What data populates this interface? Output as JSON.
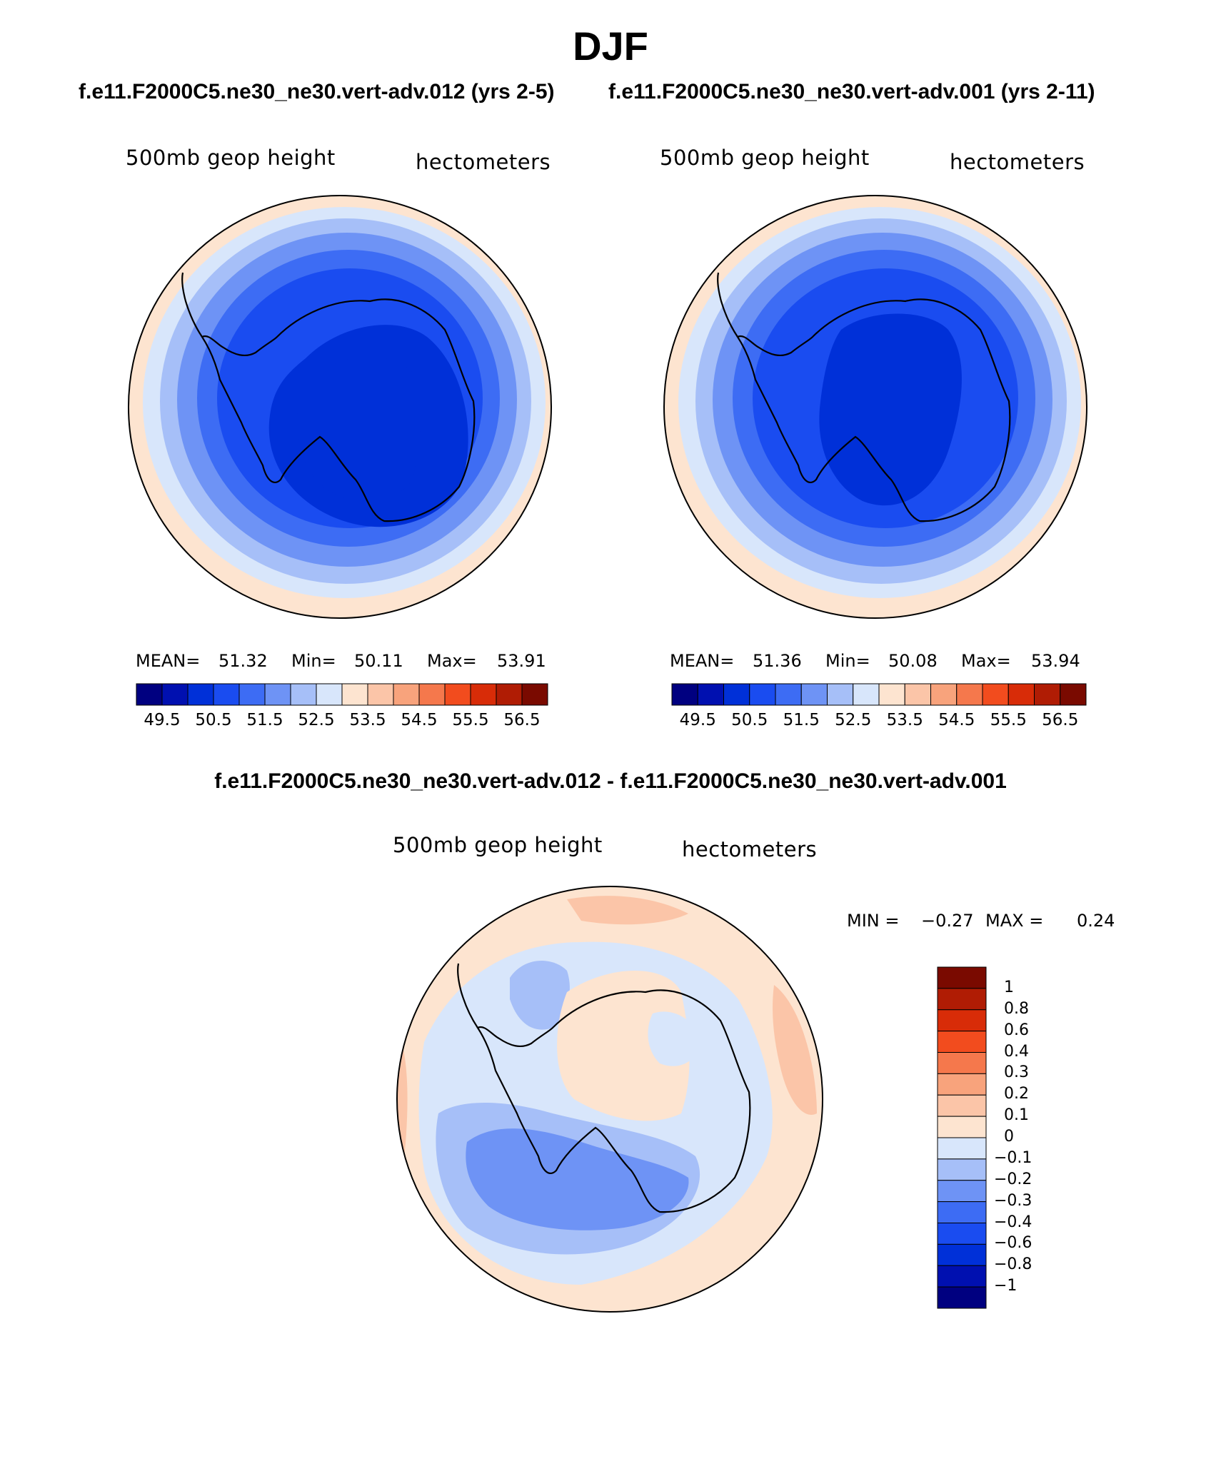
{
  "header": {
    "season": "DJF",
    "case_left": "f.e11.F2000C5.ne30_ne30.vert-adv.012 (yrs 2-5)",
    "case_right": "f.e11.F2000C5.ne30_ne30.vert-adv.001 (yrs 2-11)",
    "diff_title": "f.e11.F2000C5.ne30_ne30.vert-adv.012 - f.e11.F2000C5.ne30_ne30.vert-adv.001"
  },
  "panels": [
    {
      "variable": "500mb geop height",
      "units": "hectometers",
      "mean_label": "MEAN=",
      "mean": "51.32",
      "min_label": "Min=",
      "min": "50.11",
      "max_label": "Max=",
      "max": "53.91"
    },
    {
      "variable": "500mb geop height",
      "units": "hectometers",
      "mean_label": "MEAN=",
      "mean": "51.36",
      "min_label": "Min=",
      "min": "50.08",
      "max_label": "Max=",
      "max": "53.94"
    }
  ],
  "diff_panel": {
    "variable": "500mb geop height",
    "units": "hectometers",
    "min_label": "MIN =",
    "min": "−0.27",
    "max_label": "MAX =",
    "max": "0.24"
  },
  "colorbar_abs": {
    "ticks": [
      "49.5",
      "50.5",
      "51.5",
      "52.5",
      "53.5",
      "54.5",
      "55.5",
      "56.5"
    ],
    "colors": [
      "#000080",
      "#0010b0",
      "#0030d8",
      "#1a4cf0",
      "#3d6cf4",
      "#6e93f5",
      "#a6bff8",
      "#d8e6fb",
      "#fde4d0",
      "#fbc5a8",
      "#f8a37c",
      "#f5784c",
      "#f24c1e",
      "#d82c08",
      "#b01c04",
      "#7a0a00"
    ]
  },
  "colorbar_diff": {
    "ticks": [
      "1",
      "0.8",
      "0.6",
      "0.4",
      "0.3",
      "0.2",
      "0.1",
      "0",
      "−0.1",
      "−0.2",
      "−0.3",
      "−0.4",
      "−0.6",
      "−0.8",
      "−1"
    ],
    "colors": [
      "#7a0a00",
      "#b01c04",
      "#d82c08",
      "#f24c1e",
      "#f5784c",
      "#f8a37c",
      "#fbc5a8",
      "#fde4d0",
      "#d8e6fb",
      "#a6bff8",
      "#6e93f5",
      "#3d6cf4",
      "#1a4cf0",
      "#0030d8",
      "#0010b0",
      "#000080"
    ]
  },
  "chart_data": [
    {
      "type": "heatmap",
      "title": "500mb geop height",
      "units": "hectometers",
      "case": "f.e11.F2000C5.ne30_ne30.vert-adv.012 (yrs 2-5)",
      "projection": "south polar stereographic",
      "mean": 51.32,
      "min": 50.11,
      "max": 53.91,
      "contour_levels": [
        49.5,
        50.0,
        50.5,
        51.0,
        51.5,
        52.0,
        52.5,
        53.0,
        53.5,
        54.0,
        54.5,
        55.0,
        55.5,
        56.0,
        56.5
      ]
    },
    {
      "type": "heatmap",
      "title": "500mb geop height",
      "units": "hectometers",
      "case": "f.e11.F2000C5.ne30_ne30.vert-adv.001 (yrs 2-11)",
      "projection": "south polar stereographic",
      "mean": 51.36,
      "min": 50.08,
      "max": 53.94,
      "contour_levels": [
        49.5,
        50.0,
        50.5,
        51.0,
        51.5,
        52.0,
        52.5,
        53.0,
        53.5,
        54.0,
        54.5,
        55.0,
        55.5,
        56.0,
        56.5
      ]
    },
    {
      "type": "heatmap",
      "title": "500mb geop height (difference)",
      "units": "hectometers",
      "case": "f.e11.F2000C5.ne30_ne30.vert-adv.012 - f.e11.F2000C5.ne30_ne30.vert-adv.001",
      "projection": "south polar stereographic",
      "min": -0.27,
      "max": 0.24,
      "contour_levels": [
        -1,
        -0.8,
        -0.6,
        -0.4,
        -0.3,
        -0.2,
        -0.1,
        0,
        0.1,
        0.2,
        0.3,
        0.4,
        0.6,
        0.8,
        1
      ]
    }
  ]
}
